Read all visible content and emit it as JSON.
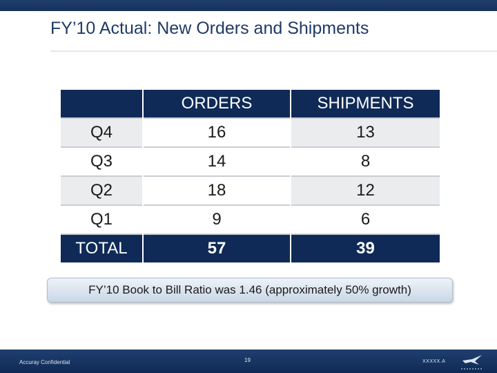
{
  "slide": {
    "title": "FY’10 Actual: New Orders and Shipments"
  },
  "table": {
    "headers": [
      "",
      "ORDERS",
      "SHIPMENTS"
    ],
    "rows": [
      {
        "label": "Q4",
        "orders": "16",
        "shipments": "13"
      },
      {
        "label": "Q3",
        "orders": "14",
        "shipments": "8"
      },
      {
        "label": "Q2",
        "orders": "18",
        "shipments": "12"
      },
      {
        "label": "Q1",
        "orders": "9",
        "shipments": "6"
      }
    ],
    "total": {
      "label": "TOTAL",
      "orders": "57",
      "shipments": "39"
    }
  },
  "callout": {
    "text": "FY’10 Book to Bill Ratio was 1.46 (approximately 50% growth)"
  },
  "footer": {
    "confidential": "Accuray Confidential",
    "page_number": "19",
    "doc_code": "XXXXX.A"
  },
  "colors": {
    "navy": "#0f2a56",
    "band": "#ebeced",
    "title": "#1f3a66"
  }
}
